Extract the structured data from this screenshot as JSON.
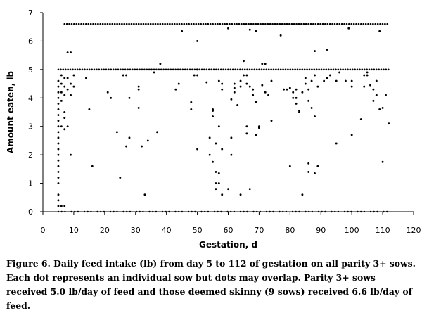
{
  "caption": "Figure 6. Daily feed intake (lb) from day 5 to 112 of gestation on all parity 3+ sows. Each dot represents an individual sow but dots may overlap. Parity 3+ sows received 5.0 lb/day of feed and those deemed skinny (9 sows) received 6.6 lb/day of feed.",
  "chart_data": {
    "type": "scatter",
    "xlabel": "Gestation, d",
    "ylabel": "Amount eaten, lb",
    "xlim": [
      0,
      120
    ],
    "ylim": [
      0,
      7
    ],
    "xticks": [
      0,
      10,
      20,
      30,
      40,
      50,
      60,
      70,
      80,
      90,
      100,
      110,
      120
    ],
    "yticks": [
      0,
      1,
      2,
      3,
      4,
      5,
      6,
      7
    ],
    "grid": false,
    "marker_color": "#000000",
    "reference_lines": [
      {
        "y": 5.0,
        "x_range": [
          5,
          112
        ],
        "style": "dense dotted row"
      },
      {
        "y": 6.6,
        "x_range": [
          7,
          112
        ],
        "style": "dense dotted row"
      },
      {
        "y": 0,
        "x_range": [
          5,
          112
        ],
        "style": "sparse dotted row"
      }
    ],
    "points": [
      [
        5,
        4.6
      ],
      [
        5,
        4.4
      ],
      [
        5,
        4.2
      ],
      [
        5,
        4.0
      ],
      [
        5,
        3.8
      ],
      [
        5,
        3.6
      ],
      [
        5,
        3.4
      ],
      [
        5,
        3.2
      ],
      [
        5,
        3.0
      ],
      [
        5,
        2.8
      ],
      [
        5,
        2.6
      ],
      [
        5,
        2.4
      ],
      [
        5,
        2.2
      ],
      [
        5,
        2.0
      ],
      [
        5,
        1.8
      ],
      [
        5,
        1.6
      ],
      [
        5,
        1.4
      ],
      [
        5,
        1.2
      ],
      [
        5,
        1.0
      ],
      [
        5,
        0.6
      ],
      [
        5,
        0.4
      ],
      [
        5,
        0.2
      ],
      [
        6,
        4.8
      ],
      [
        6,
        4.5
      ],
      [
        6,
        4.2
      ],
      [
        6,
        3.9
      ],
      [
        6,
        3.0
      ],
      [
        6,
        0.2
      ],
      [
        7,
        4.7
      ],
      [
        7,
        4.4
      ],
      [
        7,
        4.1
      ],
      [
        7,
        3.5
      ],
      [
        7,
        3.3
      ],
      [
        7,
        2.9
      ],
      [
        7,
        0.2
      ],
      [
        8,
        5.6
      ],
      [
        8,
        4.7
      ],
      [
        8,
        4.3
      ],
      [
        8,
        3.0
      ],
      [
        9,
        5.6
      ],
      [
        9,
        4.5
      ],
      [
        9,
        4.1
      ],
      [
        9,
        2.0
      ],
      [
        10,
        4.8
      ],
      [
        10,
        4.4
      ],
      [
        14,
        4.7
      ],
      [
        15,
        3.6
      ],
      [
        16,
        1.6
      ],
      [
        21,
        4.2
      ],
      [
        22,
        4.0
      ],
      [
        24,
        2.8
      ],
      [
        25,
        1.2
      ],
      [
        26,
        4.8
      ],
      [
        27,
        2.3
      ],
      [
        27,
        4.8
      ],
      [
        28,
        4.0
      ],
      [
        28,
        2.6
      ],
      [
        31,
        4.3
      ],
      [
        31,
        4.4
      ],
      [
        31,
        3.65
      ],
      [
        32,
        2.3
      ],
      [
        33,
        0.6
      ],
      [
        34,
        2.5
      ],
      [
        35,
        5.0
      ],
      [
        36,
        4.9
      ],
      [
        37,
        2.8
      ],
      [
        38,
        5.2
      ],
      [
        43,
        4.3
      ],
      [
        44,
        4.5
      ],
      [
        45,
        6.35
      ],
      [
        48,
        3.85
      ],
      [
        48,
        3.6
      ],
      [
        49,
        4.8
      ],
      [
        50,
        5.0
      ],
      [
        50,
        6.0
      ],
      [
        50,
        4.8
      ],
      [
        50,
        2.2
      ],
      [
        53,
        4.55
      ],
      [
        54,
        2.0
      ],
      [
        54,
        2.6
      ],
      [
        55,
        1.75
      ],
      [
        55,
        3.35
      ],
      [
        55,
        3.55
      ],
      [
        55,
        3.6
      ],
      [
        56,
        2.4
      ],
      [
        56,
        1.4
      ],
      [
        56,
        1.0
      ],
      [
        56,
        0.8
      ],
      [
        57,
        3.0
      ],
      [
        57,
        1.35
      ],
      [
        57,
        1.0
      ],
      [
        57,
        4.6
      ],
      [
        58,
        4.5
      ],
      [
        58,
        4.3
      ],
      [
        58,
        2.2
      ],
      [
        58,
        0.6
      ],
      [
        60,
        6.45
      ],
      [
        60,
        0.8
      ],
      [
        61,
        3.95
      ],
      [
        61,
        2.0
      ],
      [
        61,
        2.6
      ],
      [
        62,
        4.5
      ],
      [
        62,
        4.2
      ],
      [
        62,
        4.35
      ],
      [
        63,
        3.75
      ],
      [
        64,
        4.6
      ],
      [
        64,
        0.6
      ],
      [
        64,
        4.4
      ],
      [
        65,
        4.8
      ],
      [
        65,
        5.3
      ],
      [
        66,
        4.5
      ],
      [
        66,
        4.8
      ],
      [
        66,
        3.0
      ],
      [
        66,
        2.75
      ],
      [
        67,
        6.4
      ],
      [
        67,
        0.8
      ],
      [
        67,
        4.4
      ],
      [
        68,
        4.3
      ],
      [
        68,
        4.1
      ],
      [
        69,
        6.35
      ],
      [
        69,
        3.85
      ],
      [
        69,
        2.7
      ],
      [
        70,
        3.0
      ],
      [
        70,
        2.95
      ],
      [
        71,
        5.2
      ],
      [
        71,
        4.45
      ],
      [
        72,
        5.2
      ],
      [
        72,
        4.2
      ],
      [
        73,
        4.1
      ],
      [
        74,
        4.6
      ],
      [
        74,
        3.2
      ],
      [
        77,
        6.2
      ],
      [
        78,
        4.3
      ],
      [
        79,
        4.3
      ],
      [
        80,
        4.35
      ],
      [
        80,
        1.6
      ],
      [
        81,
        4.2
      ],
      [
        81,
        4.0
      ],
      [
        82,
        3.8
      ],
      [
        82,
        4.3
      ],
      [
        82,
        4.0
      ],
      [
        83,
        3.55
      ],
      [
        83,
        3.5
      ],
      [
        84,
        0.6
      ],
      [
        84,
        4.2
      ],
      [
        85,
        4.7
      ],
      [
        85,
        4.5
      ],
      [
        86,
        4.3
      ],
      [
        86,
        3.9
      ],
      [
        86,
        1.4
      ],
      [
        86,
        1.7
      ],
      [
        87,
        3.65
      ],
      [
        87,
        4.6
      ],
      [
        88,
        5.65
      ],
      [
        88,
        3.35
      ],
      [
        88,
        1.35
      ],
      [
        88,
        4.8
      ],
      [
        89,
        1.6
      ],
      [
        89,
        4.4
      ],
      [
        91,
        4.6
      ],
      [
        92,
        5.7
      ],
      [
        92,
        4.7
      ],
      [
        93,
        4.8
      ],
      [
        95,
        4.6
      ],
      [
        95,
        2.4
      ],
      [
        96,
        4.9
      ],
      [
        98,
        4.6
      ],
      [
        99,
        6.45
      ],
      [
        100,
        4.6
      ],
      [
        100,
        2.7
      ],
      [
        100,
        4.4
      ],
      [
        103,
        3.25
      ],
      [
        104,
        4.8
      ],
      [
        104,
        4.4
      ],
      [
        105,
        4.9
      ],
      [
        105,
        4.8
      ],
      [
        106,
        4.45
      ],
      [
        107,
        4.3
      ],
      [
        107,
        3.9
      ],
      [
        108,
        4.6
      ],
      [
        108,
        4.1
      ],
      [
        109,
        6.35
      ],
      [
        109,
        3.6
      ],
      [
        110,
        1.75
      ],
      [
        110,
        3.65
      ],
      [
        111,
        4.1
      ],
      [
        112,
        3.1
      ]
    ]
  }
}
